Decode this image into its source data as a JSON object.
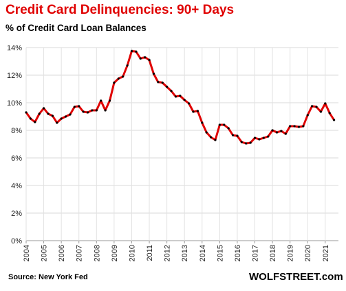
{
  "chart_data": {
    "type": "line",
    "title": "Credit Card Delinquencies: 90+ Days",
    "subtitle": "% of Credit Card Loan Balances",
    "source": "Source: New York Fed",
    "brand": "WOLFSTREET.com",
    "ylim": [
      0,
      14
    ],
    "yticks": [
      "0%",
      "2%",
      "4%",
      "6%",
      "8%",
      "10%",
      "12%",
      "14%"
    ],
    "xlim": [
      2004,
      2021.75
    ],
    "xticks": [
      "2004",
      "2005",
      "2006",
      "2007",
      "2008",
      "2009",
      "2010",
      "2011",
      "2012",
      "2013",
      "2014",
      "2015",
      "2016",
      "2017",
      "2018",
      "2019",
      "2020",
      "2021"
    ],
    "grid": true,
    "line_color": "#e00000",
    "marker_color": "#000000",
    "series": [
      {
        "x": [
          2004.0,
          2004.25,
          2004.5,
          2004.75,
          2005.0,
          2005.25,
          2005.5,
          2005.75,
          2006.0,
          2006.25,
          2006.5,
          2006.75,
          2007.0,
          2007.25,
          2007.5,
          2007.75,
          2008.0,
          2008.25,
          2008.5,
          2008.75,
          2009.0,
          2009.25,
          2009.5,
          2009.75,
          2010.0,
          2010.25,
          2010.5,
          2010.75,
          2011.0,
          2011.25,
          2011.5,
          2011.75,
          2012.0,
          2012.25,
          2012.5,
          2012.75,
          2013.0,
          2013.25,
          2013.5,
          2013.75,
          2014.0,
          2014.25,
          2014.5,
          2014.75,
          2015.0,
          2015.25,
          2015.5,
          2015.75,
          2016.0,
          2016.25,
          2016.5,
          2016.75,
          2017.0,
          2017.25,
          2017.5,
          2017.75,
          2018.0,
          2018.25,
          2018.5,
          2018.75,
          2019.0,
          2019.25,
          2019.5,
          2019.75,
          2020.0,
          2020.25,
          2020.5,
          2020.75,
          2021.0,
          2021.25,
          2021.5
        ],
        "values": [
          9.3,
          8.85,
          8.6,
          9.2,
          9.6,
          9.2,
          9.05,
          8.55,
          8.85,
          9.0,
          9.15,
          9.7,
          9.75,
          9.35,
          9.3,
          9.45,
          9.45,
          10.15,
          9.45,
          10.15,
          11.45,
          11.75,
          11.9,
          12.7,
          13.75,
          13.7,
          13.2,
          13.3,
          13.1,
          12.1,
          11.5,
          11.45,
          11.15,
          10.85,
          10.45,
          10.5,
          10.2,
          9.95,
          9.35,
          9.4,
          8.55,
          7.85,
          7.5,
          7.3,
          8.4,
          8.4,
          8.15,
          7.65,
          7.6,
          7.15,
          7.05,
          7.1,
          7.45,
          7.35,
          7.45,
          7.55,
          8.0,
          7.85,
          7.95,
          7.75,
          8.3,
          8.3,
          8.25,
          8.3,
          9.1,
          9.75,
          9.7,
          9.35,
          9.95,
          9.25,
          8.75
        ]
      }
    ]
  }
}
